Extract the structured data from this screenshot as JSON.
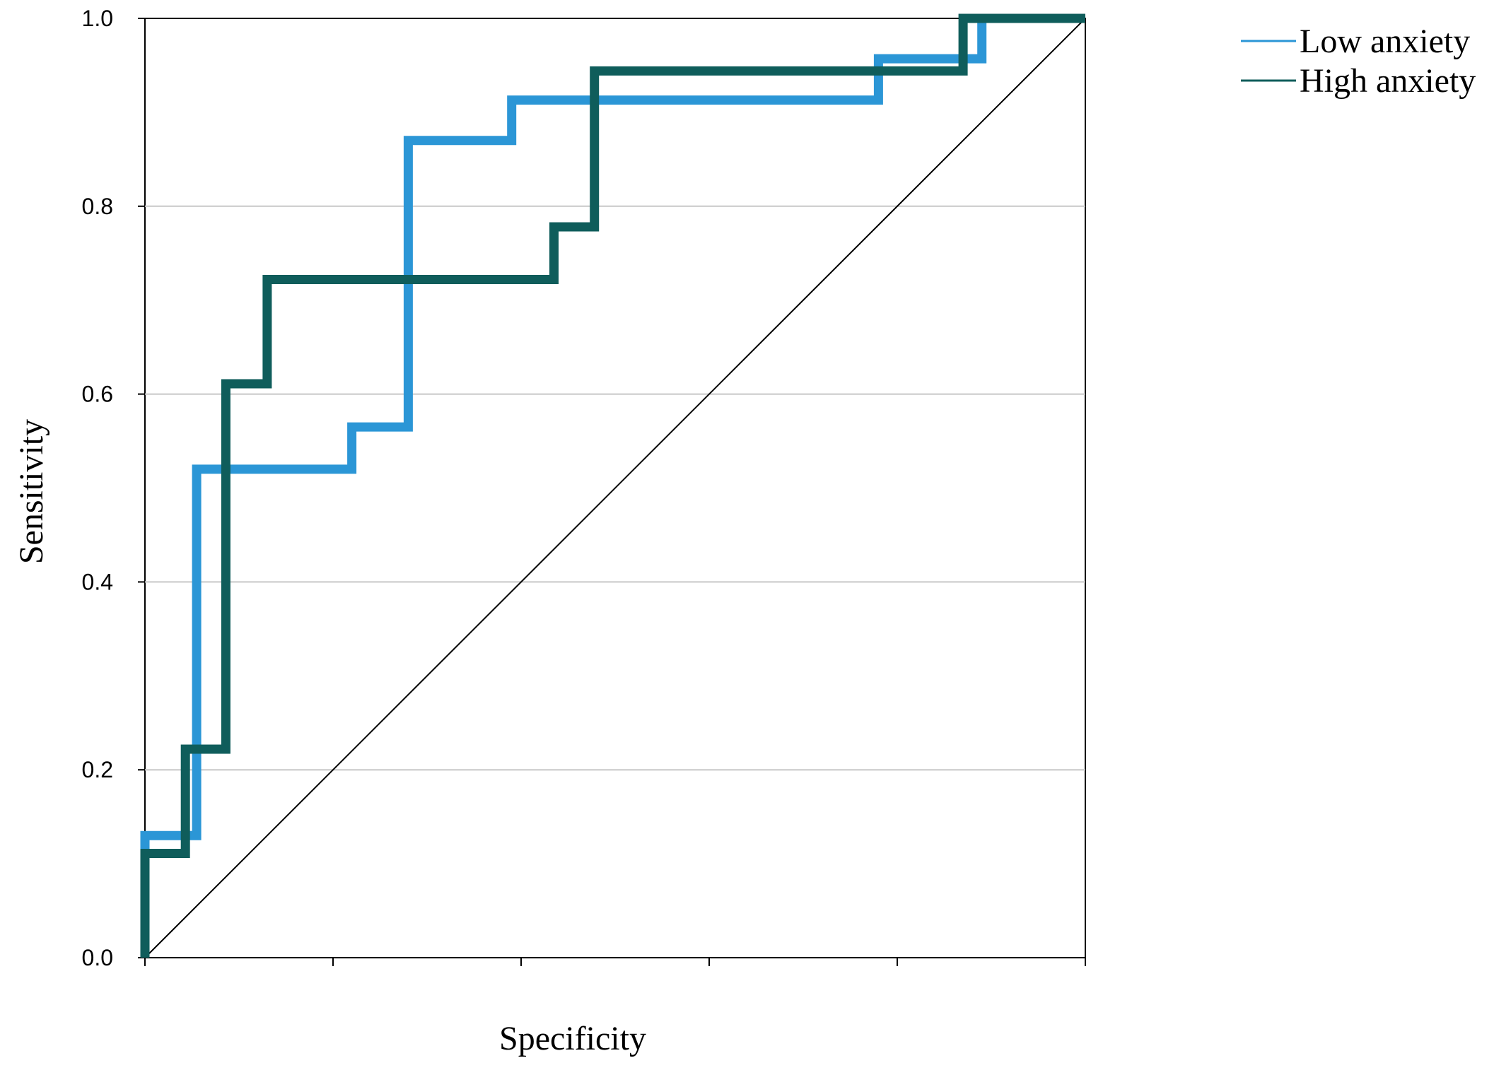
{
  "chart_data": {
    "type": "line",
    "title": "",
    "xlabel": "Specificity",
    "ylabel": "Sensitivity",
    "xlim": [
      0,
      1
    ],
    "ylim": [
      0,
      1
    ],
    "yticks": [
      "0.0",
      "0.2",
      "0.4",
      "0.6",
      "0.8",
      "1.0"
    ],
    "grid": true,
    "legend_position": "top-right",
    "reference_line": {
      "x": [
        0,
        1
      ],
      "y": [
        0,
        1
      ],
      "color": "#000000"
    },
    "series": [
      {
        "name": "Low anxiety",
        "color": "#2b96d6",
        "x": [
          0,
          0,
          0.055,
          0.055,
          0.057,
          0.22,
          0.22,
          0.28,
          0.28,
          0.39,
          0.39,
          0.78,
          0.78,
          0.89,
          0.89,
          1
        ],
        "y": [
          0,
          0.13,
          0.13,
          0.52,
          0.52,
          0.52,
          0.565,
          0.565,
          0.87,
          0.87,
          0.913,
          0.913,
          0.957,
          0.957,
          1,
          1
        ]
      },
      {
        "name": "High anxiety",
        "color": "#0f5d5b",
        "x": [
          0,
          0,
          0.043,
          0.043,
          0.086,
          0.086,
          0.13,
          0.13,
          0.435,
          0.435,
          0.478,
          0.478,
          0.87,
          0.87,
          1
        ],
        "y": [
          0,
          0.111,
          0.111,
          0.222,
          0.222,
          0.611,
          0.611,
          0.722,
          0.722,
          0.778,
          0.778,
          0.944,
          0.944,
          1,
          1
        ]
      }
    ]
  }
}
